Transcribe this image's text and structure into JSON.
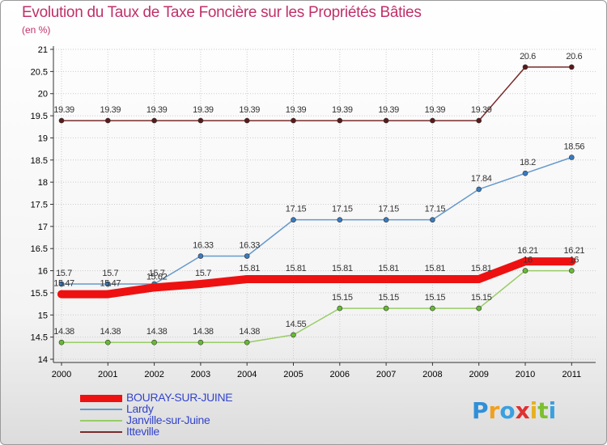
{
  "header": {
    "title": "Evolution du Taux de Taxe Foncière sur les Propriétés Bâties",
    "subtitle": "(en %)"
  },
  "chart_data": {
    "type": "line",
    "title": "Evolution du Taux de Taxe Foncière sur les Propriétés Bâties",
    "ylabel": "(en %)",
    "xlabel": "",
    "categories": [
      "2000",
      "2001",
      "2002",
      "2003",
      "2004",
      "2005",
      "2006",
      "2007",
      "2008",
      "2009",
      "2010",
      "2011"
    ],
    "ylim": [
      14,
      21
    ],
    "yticks": [
      "14",
      "14.5",
      "15",
      "15.5",
      "16",
      "16.5",
      "17",
      "17.5",
      "18",
      "18.5",
      "19",
      "19.5",
      "20",
      "20.5",
      "21"
    ],
    "grid": true,
    "legend_position": "bottom-left",
    "series": [
      {
        "name": "Itteville",
        "color": "#7a2a2a",
        "marker": "#5a1a1a",
        "width": 1.5,
        "values": [
          19.39,
          19.39,
          19.39,
          19.39,
          19.39,
          19.39,
          19.39,
          19.39,
          19.39,
          19.39,
          20.6,
          20.6
        ],
        "labels": [
          "19.39",
          "19.39",
          "19.39",
          "19.39",
          "19.39",
          "19.39",
          "19.39",
          "19.39",
          "19.39",
          "19.39",
          "20.6",
          "20.6"
        ]
      },
      {
        "name": "Lardy",
        "color": "#6699cc",
        "marker": "#3a7bbf",
        "width": 1.5,
        "values": [
          15.7,
          15.7,
          15.7,
          16.33,
          16.33,
          17.15,
          17.15,
          17.15,
          17.15,
          17.84,
          18.2,
          18.56
        ],
        "labels": [
          "15.7",
          "15.7",
          "15.7",
          "16.33",
          "16.33",
          "17.15",
          "17.15",
          "17.15",
          "17.15",
          "17.84",
          "18.2",
          "18.56"
        ]
      },
      {
        "name": "Janville-sur-Juine",
        "color": "#99cc66",
        "marker": "#66bb33",
        "width": 1.5,
        "values": [
          14.38,
          14.38,
          14.38,
          14.38,
          14.38,
          14.55,
          15.15,
          15.15,
          15.15,
          15.15,
          16,
          16
        ],
        "labels": [
          "14.38",
          "14.38",
          "14.38",
          "14.38",
          "14.38",
          "14.55",
          "15.15",
          "15.15",
          "15.15",
          "15.15",
          "16",
          "16"
        ]
      },
      {
        "name": "BOURAY-SUR-JUINE",
        "color": "#ee1111",
        "marker": "#ee1111",
        "width": 10,
        "values": [
          15.47,
          15.47,
          15.62,
          15.7,
          15.81,
          15.81,
          15.81,
          15.81,
          15.81,
          15.81,
          16.21,
          16.21
        ],
        "labels": [
          "15.47",
          "15.47",
          "15.62",
          "15.7",
          "15.81",
          "15.81",
          "15.81",
          "15.81",
          "15.81",
          "15.81",
          "16.21",
          "16.21"
        ]
      }
    ]
  },
  "legend": {
    "items": [
      {
        "label": "BOURAY-SUR-JUINE",
        "color": "#ee1111"
      },
      {
        "label": "Lardy",
        "color": "#6699cc"
      },
      {
        "label": "Janville-sur-Juine",
        "color": "#99cc66"
      },
      {
        "label": "Itteville",
        "color": "#7a2a2a"
      }
    ]
  },
  "logo": {
    "letters": [
      "P",
      "r",
      "o",
      "x",
      "i",
      "t",
      "i"
    ],
    "colors": [
      "#2f8fd8",
      "#f0a020",
      "#3aa0e0",
      "#e03030",
      "#e8b020",
      "#7cc030",
      "#3aa0e0"
    ]
  }
}
